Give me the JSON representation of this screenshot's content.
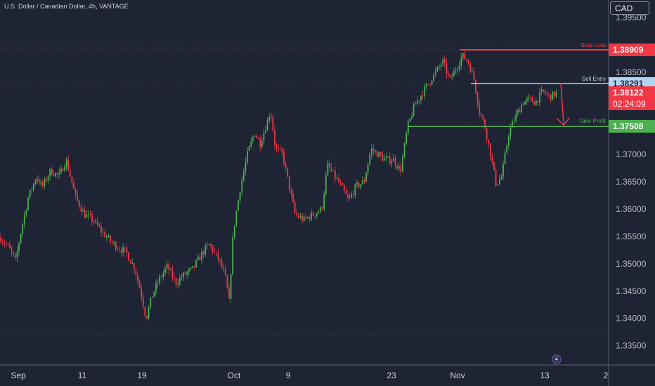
{
  "chart_data": {
    "type": "candlestick",
    "title": "U.S. Dollar / Canadian Dollar, 4h, VANTAGE",
    "currency": "CAD",
    "y_ticks": [
      "1.39500",
      "1.38500",
      "1.37000",
      "1.36500",
      "1.36000",
      "1.35500",
      "1.35000",
      "1.34500",
      "1.34000",
      "1.33500"
    ],
    "y_tick_values": [
      1.395,
      1.385,
      1.37,
      1.365,
      1.36,
      1.355,
      1.35,
      1.345,
      1.34,
      1.335
    ],
    "ylim": [
      1.3315,
      1.3982
    ],
    "x_ticks": [
      "Sep",
      "11",
      "19",
      "Oct",
      "9",
      "23",
      "Nov",
      "13",
      "2"
    ],
    "levels": [
      {
        "name": "Stop Loss",
        "value": 1.38909,
        "label": "1.38909",
        "color": "#f23645"
      },
      {
        "name": "Sell Entry",
        "value": 1.38291,
        "label": "1.38291",
        "color": "#b2d4f0"
      },
      {
        "name": "Take Profit",
        "value": 1.37508,
        "label": "1.37508",
        "color": "#4caf50"
      }
    ],
    "current_price": {
      "value": 1.38122,
      "label": "1.38122",
      "countdown": "02:24:09",
      "color": "#f23645"
    },
    "price_path": [
      [
        0,
        1.3548
      ],
      [
        12,
        1.353
      ],
      [
        22,
        1.3505
      ],
      [
        30,
        1.356
      ],
      [
        40,
        1.362
      ],
      [
        52,
        1.366
      ],
      [
        60,
        1.364
      ],
      [
        72,
        1.367
      ],
      [
        84,
        1.366
      ],
      [
        94,
        1.369
      ],
      [
        100,
        1.366
      ],
      [
        108,
        1.362
      ],
      [
        120,
        1.359
      ],
      [
        132,
        1.358
      ],
      [
        144,
        1.356
      ],
      [
        158,
        1.354
      ],
      [
        168,
        1.353
      ],
      [
        180,
        1.352
      ],
      [
        192,
        1.349
      ],
      [
        200,
        1.345
      ],
      [
        208,
        1.34
      ],
      [
        216,
        1.344
      ],
      [
        226,
        1.347
      ],
      [
        238,
        1.3495
      ],
      [
        250,
        1.3465
      ],
      [
        262,
        1.348
      ],
      [
        274,
        1.349
      ],
      [
        288,
        1.352
      ],
      [
        298,
        1.3535
      ],
      [
        310,
        1.351
      ],
      [
        320,
        1.348
      ],
      [
        326,
        1.343
      ],
      [
        332,
        1.356
      ],
      [
        342,
        1.364
      ],
      [
        352,
        1.37
      ],
      [
        362,
        1.374
      ],
      [
        370,
        1.372
      ],
      [
        378,
        1.375
      ],
      [
        385,
        1.378
      ],
      [
        392,
        1.371
      ],
      [
        402,
        1.37
      ],
      [
        410,
        1.365
      ],
      [
        420,
        1.359
      ],
      [
        432,
        1.358
      ],
      [
        446,
        1.359
      ],
      [
        458,
        1.36
      ],
      [
        466,
        1.368
      ],
      [
        476,
        1.366
      ],
      [
        486,
        1.364
      ],
      [
        496,
        1.3615
      ],
      [
        506,
        1.364
      ],
      [
        518,
        1.365
      ],
      [
        528,
        1.371
      ],
      [
        538,
        1.37
      ],
      [
        548,
        1.369
      ],
      [
        560,
        1.369
      ],
      [
        570,
        1.367
      ],
      [
        580,
        1.375
      ],
      [
        590,
        1.379
      ],
      [
        600,
        1.381
      ],
      [
        610,
        1.383
      ],
      [
        620,
        1.385
      ],
      [
        630,
        1.387
      ],
      [
        640,
        1.3835
      ],
      [
        650,
        1.386
      ],
      [
        658,
        1.388
      ],
      [
        666,
        1.387
      ],
      [
        674,
        1.384
      ],
      [
        682,
        1.378
      ],
      [
        690,
        1.375
      ],
      [
        698,
        1.37
      ],
      [
        706,
        1.3645
      ],
      [
        714,
        1.366
      ],
      [
        724,
        1.374
      ],
      [
        734,
        1.377
      ],
      [
        744,
        1.3795
      ],
      [
        754,
        1.38
      ],
      [
        762,
        1.3795
      ],
      [
        772,
        1.3815
      ],
      [
        782,
        1.3805
      ],
      [
        792,
        1.3812
      ]
    ],
    "seed": 7
  }
}
